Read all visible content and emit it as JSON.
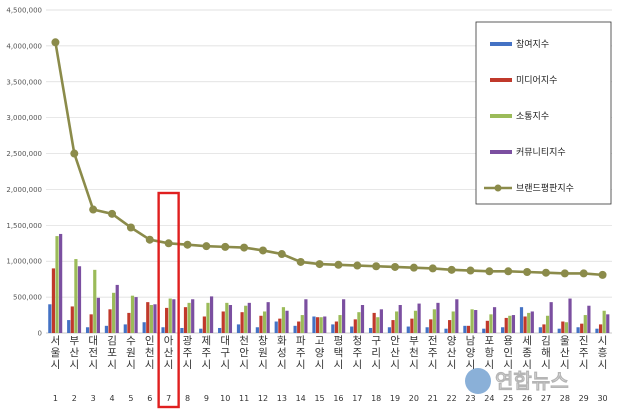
{
  "chart_data": {
    "type": "bar",
    "title": "",
    "xlabel": "",
    "ylabel": "",
    "ylim": [
      0,
      4500000
    ],
    "yticks": [
      "0",
      "500,000",
      "1,000,000",
      "1,500,000",
      "2,000,000",
      "2,500,000",
      "3,000,000",
      "3,500,000",
      "4,000,000",
      "4,500,000"
    ],
    "grid": true,
    "legend_position": "right",
    "categories": [
      "서울시",
      "부산시",
      "대전시",
      "김포시",
      "수원시",
      "인천시",
      "아산시",
      "광주시",
      "제주시",
      "대구시",
      "천안시",
      "창원시",
      "화성시",
      "파주시",
      "고양시",
      "평택시",
      "청주시",
      "구리시",
      "안산시",
      "부천시",
      "전주시",
      "양산시",
      "남양시",
      "포항시",
      "용인시",
      "세종시",
      "김해시",
      "울산시",
      "진주시",
      "시흥시"
    ],
    "ranks": [
      "1",
      "2",
      "3",
      "4",
      "5",
      "6",
      "7",
      "8",
      "9",
      "10",
      "11",
      "12",
      "13",
      "14",
      "15",
      "16",
      "17",
      "18",
      "19",
      "20",
      "21",
      "22",
      "23",
      "24",
      "25",
      "26",
      "27",
      "28",
      "29",
      "30"
    ],
    "highlight_rank": "7",
    "series": [
      {
        "name": "참여지수",
        "kind": "bar",
        "color": "#4472C4",
        "values": [
          400000,
          180000,
          80000,
          100000,
          120000,
          150000,
          80000,
          70000,
          60000,
          70000,
          120000,
          80000,
          160000,
          100000,
          230000,
          120000,
          90000,
          70000,
          80000,
          90000,
          80000,
          60000,
          100000,
          60000,
          80000,
          360000,
          80000,
          60000,
          80000,
          60000
        ]
      },
      {
        "name": "미디어지수",
        "kind": "bar",
        "color": "#C0392B",
        "values": [
          900000,
          370000,
          260000,
          330000,
          280000,
          430000,
          350000,
          360000,
          230000,
          300000,
          290000,
          240000,
          200000,
          160000,
          220000,
          160000,
          190000,
          280000,
          180000,
          200000,
          190000,
          180000,
          100000,
          170000,
          210000,
          230000,
          120000,
          160000,
          130000,
          120000
        ]
      },
      {
        "name": "소통지수",
        "kind": "bar",
        "color": "#9BBB59",
        "values": [
          1350000,
          1030000,
          880000,
          560000,
          520000,
          390000,
          480000,
          420000,
          420000,
          420000,
          380000,
          300000,
          360000,
          250000,
          220000,
          250000,
          290000,
          220000,
          300000,
          310000,
          330000,
          300000,
          330000,
          260000,
          240000,
          280000,
          240000,
          150000,
          250000,
          310000
        ]
      },
      {
        "name": "커뮤니티지수",
        "kind": "bar",
        "color": "#7B4FA0",
        "values": [
          1380000,
          930000,
          490000,
          670000,
          500000,
          400000,
          470000,
          470000,
          510000,
          390000,
          420000,
          430000,
          310000,
          470000,
          230000,
          470000,
          390000,
          330000,
          390000,
          410000,
          420000,
          470000,
          320000,
          360000,
          250000,
          300000,
          430000,
          480000,
          380000,
          260000
        ]
      },
      {
        "name": "브랜드평판지수",
        "kind": "line",
        "color": "#8B8B4A",
        "values": [
          4050000,
          2500000,
          1720000,
          1660000,
          1470000,
          1300000,
          1250000,
          1230000,
          1210000,
          1200000,
          1190000,
          1150000,
          1100000,
          990000,
          960000,
          950000,
          940000,
          930000,
          920000,
          910000,
          900000,
          880000,
          870000,
          860000,
          860000,
          850000,
          840000,
          830000,
          830000,
          810000
        ]
      }
    ]
  },
  "watermark": {
    "text": "연합뉴스"
  }
}
